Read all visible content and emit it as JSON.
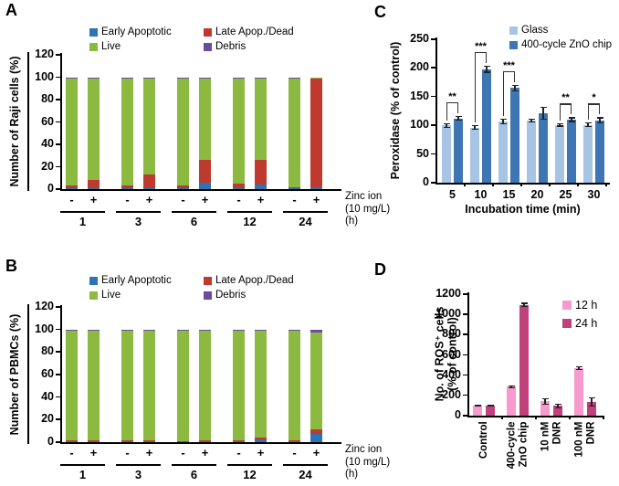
{
  "chart_data": [
    {
      "panel": "A",
      "type": "stacked-bar",
      "ylabel": "Number of Raji cells (%)",
      "ylim": [
        0,
        120
      ],
      "yticks": [
        0,
        20,
        40,
        60,
        80,
        100,
        120
      ],
      "legend": [
        {
          "label": "Early Apoptotic",
          "color": "#2E74B5"
        },
        {
          "label": "Late Apop./Dead",
          "color": "#BE3A2E"
        },
        {
          "label": "Live",
          "color": "#8CBA41"
        },
        {
          "label": "Debris",
          "color": "#6A4C9F"
        }
      ],
      "series_bottom_to_top": [
        "Early Apoptotic",
        "Late Apop./Dead",
        "Live",
        "Debris"
      ],
      "groups": [
        "1",
        "3",
        "6",
        "12",
        "24"
      ],
      "group_unit": "(h)",
      "bar_labels": [
        "-",
        "+"
      ],
      "condition_label": "Zinc ion",
      "condition_sublabel": "(10 mg/L)",
      "bars": [
        {
          "group": "1",
          "condition": "-",
          "values": [
            0.5,
            3,
            96,
            0.5
          ]
        },
        {
          "group": "1",
          "condition": "+",
          "values": [
            0.5,
            7.5,
            91.5,
            0.5
          ]
        },
        {
          "group": "3",
          "condition": "-",
          "values": [
            0.5,
            3,
            96,
            0.5
          ]
        },
        {
          "group": "3",
          "condition": "+",
          "values": [
            0.5,
            12.5,
            86.5,
            0.5
          ]
        },
        {
          "group": "6",
          "condition": "-",
          "values": [
            0.5,
            3,
            95,
            1.5
          ]
        },
        {
          "group": "6",
          "condition": "+",
          "values": [
            6,
            20,
            73.5,
            0.5
          ]
        },
        {
          "group": "12",
          "condition": "-",
          "values": [
            0.5,
            4,
            94,
            1.5
          ]
        },
        {
          "group": "12",
          "condition": "+",
          "values": [
            4,
            22.5,
            73,
            0.5
          ]
        },
        {
          "group": "24",
          "condition": "-",
          "values": [
            0.5,
            1.5,
            97,
            1
          ]
        },
        {
          "group": "24",
          "condition": "+",
          "values": [
            1.5,
            97,
            1.5,
            0
          ]
        }
      ]
    },
    {
      "panel": "B",
      "type": "stacked-bar",
      "ylabel": "Number of PBMCs (%)",
      "ylim": [
        0,
        120
      ],
      "yticks": [
        0,
        20,
        40,
        60,
        80,
        100,
        120
      ],
      "legend": [
        {
          "label": "Early Apoptotic",
          "color": "#2E74B5"
        },
        {
          "label": "Late Apop./Dead",
          "color": "#BE3A2E"
        },
        {
          "label": "Live",
          "color": "#8CBA41"
        },
        {
          "label": "Debris",
          "color": "#6A4C9F"
        }
      ],
      "series_bottom_to_top": [
        "Early Apoptotic",
        "Late Apop./Dead",
        "Live",
        "Debris"
      ],
      "groups": [
        "1",
        "3",
        "6",
        "12",
        "24"
      ],
      "group_unit": "(h)",
      "bar_labels": [
        "-",
        "+"
      ],
      "condition_label": "Zinc ion",
      "condition_sublabel": "(10 mg/L)",
      "bars": [
        {
          "group": "1",
          "condition": "-",
          "values": [
            1,
            0.5,
            97.5,
            1
          ]
        },
        {
          "group": "1",
          "condition": "+",
          "values": [
            1,
            0.5,
            97.5,
            1
          ]
        },
        {
          "group": "3",
          "condition": "-",
          "values": [
            0.5,
            1,
            97.5,
            0.5
          ]
        },
        {
          "group": "3",
          "condition": "+",
          "values": [
            1.5,
            0.5,
            97,
            1
          ]
        },
        {
          "group": "6",
          "condition": "-",
          "values": [
            0.5,
            0.5,
            98,
            1
          ]
        },
        {
          "group": "6",
          "condition": "+",
          "values": [
            1,
            0.5,
            97.5,
            1
          ]
        },
        {
          "group": "12",
          "condition": "-",
          "values": [
            1.5,
            0.5,
            97.5,
            0.5
          ]
        },
        {
          "group": "12",
          "condition": "+",
          "values": [
            2.5,
            1.5,
            95,
            1
          ]
        },
        {
          "group": "24",
          "condition": "-",
          "values": [
            1.5,
            0.5,
            97,
            1
          ]
        },
        {
          "group": "24",
          "condition": "+",
          "values": [
            7,
            4,
            86,
            2.5
          ]
        }
      ]
    },
    {
      "panel": "C",
      "type": "grouped-bar",
      "ylabel": "Peroxidase (% of control)",
      "xlabel": "Incubation time (min)",
      "ylim": [
        0,
        250
      ],
      "yticks": [
        0,
        50,
        100,
        150,
        200,
        250
      ],
      "categories": [
        "5",
        "10",
        "15",
        "20",
        "25",
        "30"
      ],
      "legend": [
        {
          "label": "Glass",
          "color": "#A8C4E4"
        },
        {
          "label": "400-cycle ZnO chip",
          "color": "#3D76B2"
        }
      ],
      "series": [
        {
          "name": "Glass",
          "values": [
            100,
            96,
            107,
            108,
            101,
            101
          ],
          "errors": [
            4,
            4,
            5,
            3,
            3,
            4
          ]
        },
        {
          "name": "400-cycle ZnO chip",
          "values": [
            112,
            198,
            165,
            121,
            110,
            109
          ],
          "errors": [
            4,
            6,
            5,
            11,
            4,
            5
          ]
        }
      ],
      "significance": [
        "**",
        "***",
        "***",
        "",
        "**",
        "*"
      ]
    },
    {
      "panel": "D",
      "type": "grouped-bar",
      "ylabel_lines": [
        "No. of ROS⁺ cells",
        "(% of control)"
      ],
      "ylim": [
        0,
        1200
      ],
      "yticks": [
        0,
        200,
        400,
        600,
        800,
        1000,
        1200
      ],
      "categories": [
        [
          "Control"
        ],
        [
          "400-cycle",
          "ZnO chip"
        ],
        [
          "10 nM",
          "DNR"
        ],
        [
          "100 nM",
          "DNR"
        ]
      ],
      "legend": [
        {
          "label": "12 h",
          "color": "#F79BCE"
        },
        {
          "label": "24 h",
          "color": "#C0417C"
        }
      ],
      "series": [
        {
          "name": "12 h",
          "values": [
            100,
            285,
            140,
            470
          ],
          "errors": [
            8,
            15,
            30,
            15
          ]
        },
        {
          "name": "24 h",
          "values": [
            100,
            1095,
            95,
            135
          ],
          "errors": [
            8,
            20,
            25,
            45
          ]
        }
      ],
      "significance": [
        "",
        "",
        "",
        ""
      ]
    }
  ]
}
